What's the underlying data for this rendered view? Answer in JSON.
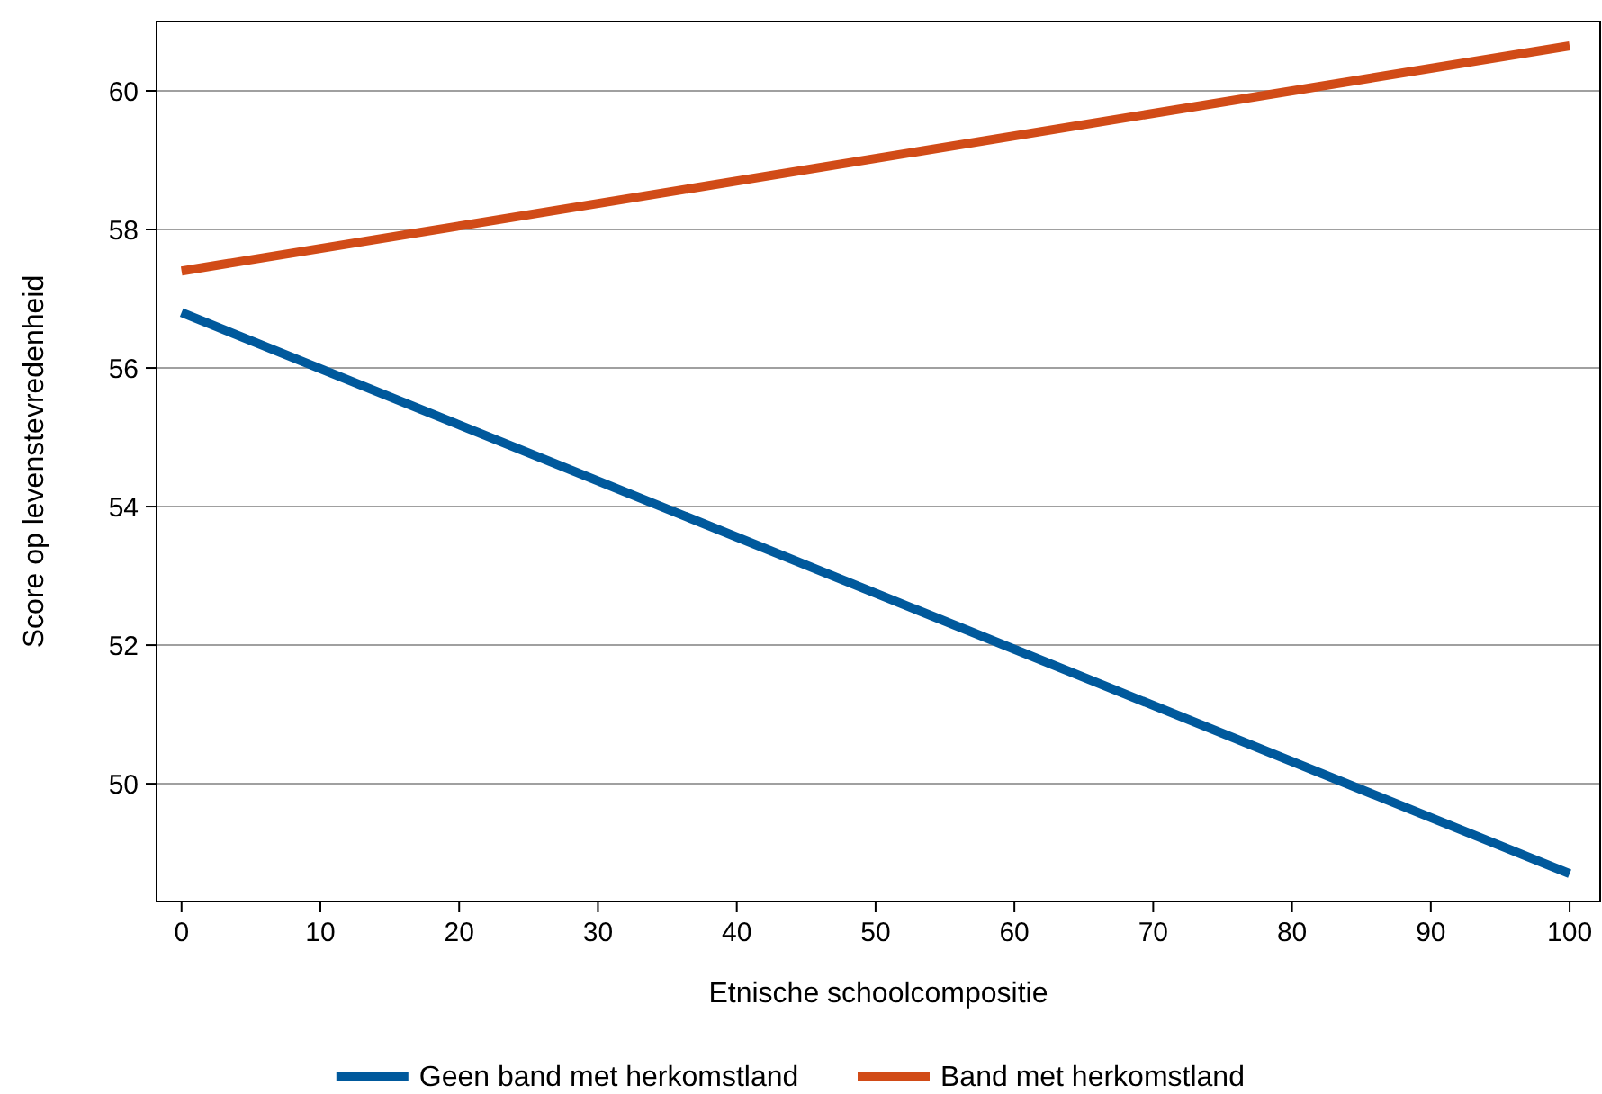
{
  "chart_data": {
    "type": "line",
    "xlabel": "Etnische schoolcompositie",
    "ylabel": "Score op levenstevredenheid",
    "x": [
      0,
      100
    ],
    "series": [
      {
        "name": "Geen band met herkomstland",
        "color": "#00599c",
        "values": [
          56.8,
          48.7
        ]
      },
      {
        "name": "Band met herkomstland",
        "color": "#d14b17",
        "values": [
          57.4,
          60.65
        ]
      }
    ],
    "xlim": [
      -1.8,
      102.2
    ],
    "xticks": [
      0,
      10,
      20,
      30,
      40,
      50,
      60,
      70,
      80,
      90,
      100
    ],
    "ylim": [
      48.3,
      61
    ],
    "yticks": [
      50,
      52,
      54,
      56,
      58,
      60
    ],
    "grid": "y",
    "legend": "bottom",
    "marker": "none",
    "line_style": "solid"
  }
}
